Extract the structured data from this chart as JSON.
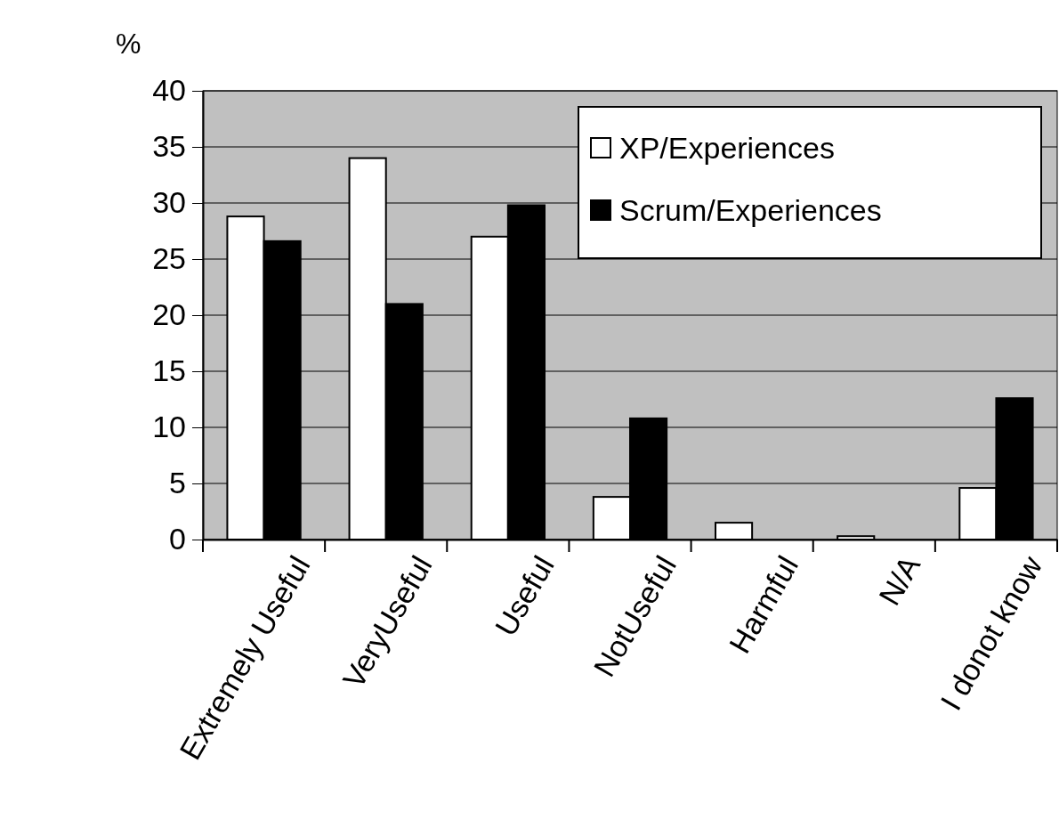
{
  "chart_data": {
    "type": "bar",
    "ylabel": "%",
    "categories": [
      "Extremely Useful",
      "VeryUseful",
      "Useful",
      "NotUseful",
      "Harmful",
      "N/A",
      "I donot know"
    ],
    "series": [
      {
        "name": "XP/Experiences",
        "color": "#ffffff",
        "values": [
          28.8,
          34,
          27,
          3.8,
          1.5,
          0.3,
          4.6
        ]
      },
      {
        "name": "Scrum/Experiences",
        "color": "#000000",
        "values": [
          26.6,
          21,
          29.8,
          10.8,
          0,
          0,
          12.6
        ]
      }
    ],
    "ylim": [
      0,
      40
    ],
    "yticks": [
      0,
      5,
      10,
      15,
      20,
      25,
      30,
      35,
      40
    ],
    "grid": "y",
    "legend": "top right"
  }
}
